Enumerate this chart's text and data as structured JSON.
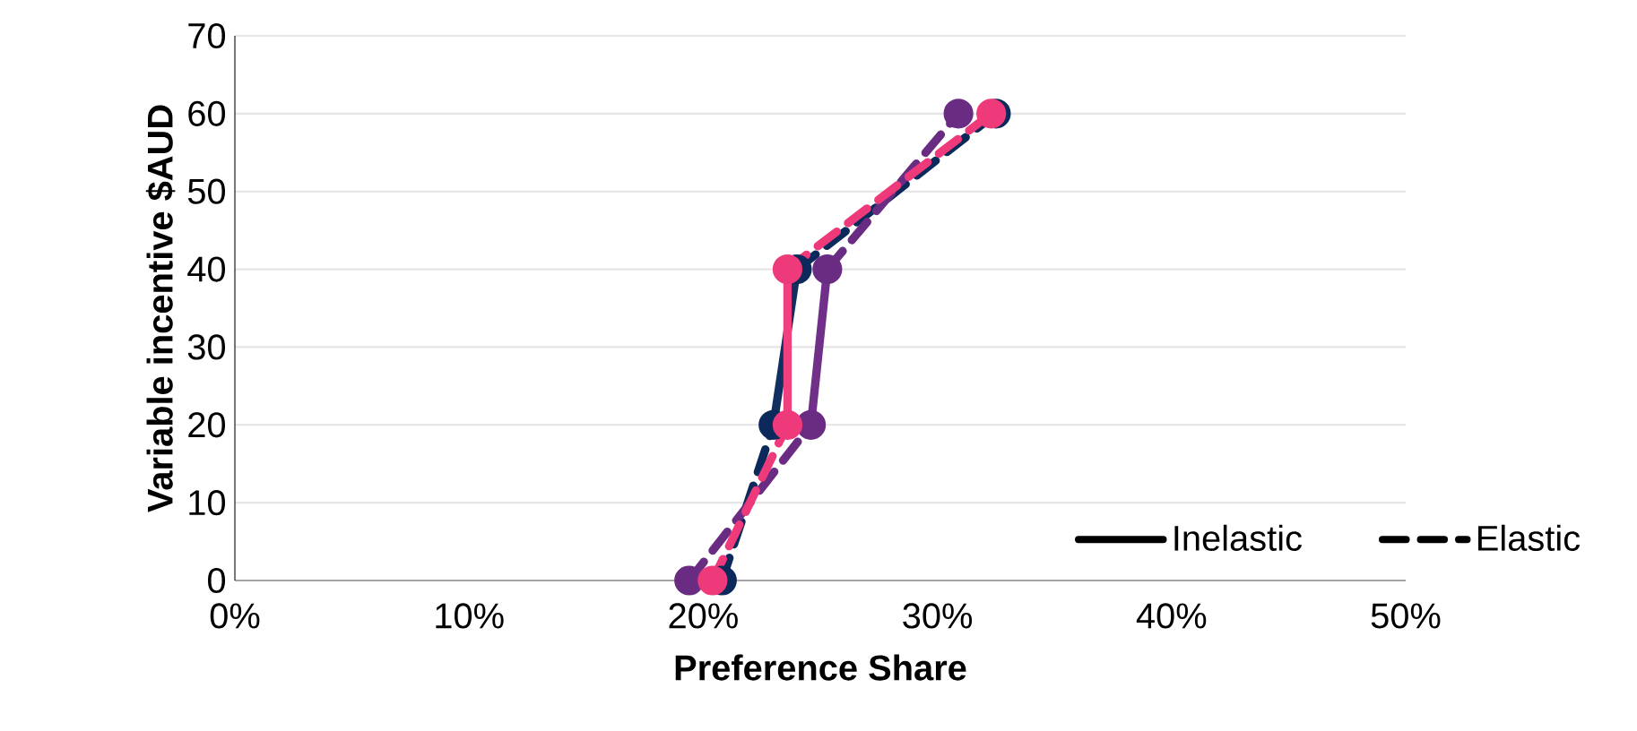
{
  "chart_data": {
    "type": "line",
    "xlabel": "Preference Share",
    "ylabel": "Variable incentive $AUD",
    "xlim": [
      0,
      50
    ],
    "ylim": [
      0,
      70
    ],
    "xticks": [
      {
        "value": 0,
        "label": "0%"
      },
      {
        "value": 10,
        "label": "10%"
      },
      {
        "value": 20,
        "label": "20%"
      },
      {
        "value": 30,
        "label": "30%"
      },
      {
        "value": 40,
        "label": "40%"
      },
      {
        "value": 50,
        "label": "50%"
      }
    ],
    "yticks": [
      0,
      10,
      20,
      30,
      40,
      50,
      60,
      70
    ],
    "grid": "y",
    "legend": "bottom right",
    "series": [
      {
        "name": "Inelastic",
        "color": "#000000",
        "line_style": "solid",
        "marker": "none",
        "x": [
          null
        ],
        "values": [
          null
        ]
      },
      {
        "name": "Elastic",
        "color": "#000000",
        "line_style": "dashed",
        "marker": "none",
        "x": [
          null
        ],
        "values": [
          null
        ]
      },
      {
        "color": "#0b2a5b",
        "line_style": "dashed",
        "marker": "circle",
        "x": [
          20.8,
          23.0,
          null,
          24.0,
          32.5
        ],
        "values": [
          0,
          20,
          null,
          40,
          60
        ]
      },
      {
        "color": "#12305f",
        "line_style": "solid",
        "marker": "none",
        "x": [
          23.0,
          24.0
        ],
        "values": [
          20,
          40
        ]
      },
      {
        "color": "#6a2c82",
        "line_style": "dashed",
        "marker": "circle",
        "x": [
          19.4,
          24.6,
          null,
          25.3,
          30.9
        ],
        "values": [
          0,
          20,
          null,
          40,
          60
        ]
      },
      {
        "color": "#70308a",
        "line_style": "solid",
        "marker": "none",
        "x": [
          24.6,
          25.3
        ],
        "values": [
          20,
          40
        ]
      },
      {
        "color": "#ee3a7a",
        "line_style": "dashed",
        "marker": "circle",
        "x": [
          20.4,
          23.6,
          null,
          23.6,
          32.3
        ],
        "values": [
          0,
          20,
          null,
          40,
          60
        ]
      },
      {
        "color": "#f04080",
        "line_style": "solid",
        "marker": "none",
        "x": [
          23.6,
          23.6
        ],
        "values": [
          20,
          40
        ]
      }
    ]
  }
}
